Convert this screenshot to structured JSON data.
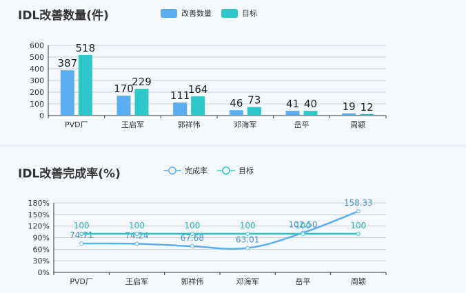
{
  "colors": {
    "bar1": "#5aaeed",
    "bar2": "#2ec7c9",
    "line1": "#5aaeed",
    "line2": "#2ec7c9",
    "axis": "#333333",
    "grid": "#c9ced6"
  },
  "chart_data": [
    {
      "type": "bar",
      "title": "IDL改善数量(件)",
      "categories": [
        "PVD厂",
        "王启军",
        "郭祥伟",
        "邓海军",
        "岳平",
        "周颖"
      ],
      "series": [
        {
          "name": "改善数量",
          "values": [
            387,
            170,
            111,
            46,
            41,
            19
          ]
        },
        {
          "name": "目标",
          "values": [
            518,
            229,
            164,
            73,
            40,
            12
          ]
        }
      ],
      "ylim": [
        0,
        600
      ],
      "yticks": [
        0,
        100,
        200,
        300,
        400,
        500,
        600
      ],
      "grid": true,
      "legend": "top"
    },
    {
      "type": "line",
      "title": "IDL改善完成率(%)",
      "categories": [
        "PVD厂",
        "王启军",
        "郭祥伟",
        "邓海军",
        "岳平",
        "周颖"
      ],
      "series": [
        {
          "name": "完成率",
          "values": [
            74.71,
            74.24,
            67.68,
            63.01,
            102.5,
            158.33
          ],
          "labels": [
            "74.71",
            "74.24",
            "67.68",
            "63.01",
            "102.50",
            "158.33"
          ]
        },
        {
          "name": "目标",
          "values": [
            100,
            100,
            100,
            100,
            100,
            100
          ],
          "labels": [
            "100",
            "100",
            "100",
            "100",
            "100",
            "100"
          ]
        }
      ],
      "ylim": [
        0,
        180
      ],
      "yticks": [
        "0%",
        "30%",
        "60%",
        "90%",
        "120%",
        "150%",
        "180%"
      ],
      "grid": true,
      "legend": "top"
    }
  ]
}
